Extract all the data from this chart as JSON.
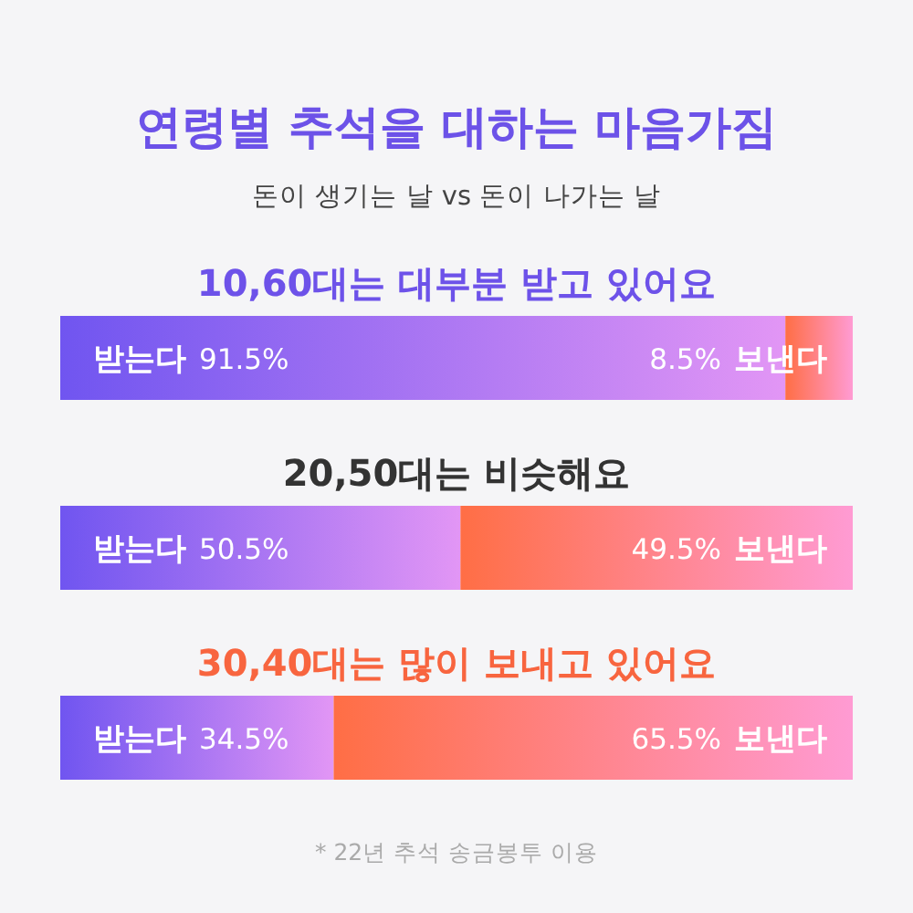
{
  "chart_data": {
    "type": "bar",
    "orientation": "horizontal",
    "stacked": true,
    "title": "연령별 추석을 대하는 마음가짐",
    "subtitle": "돈이 생기는 날 vs 돈이 나가는 날",
    "categories": [
      "10,60대는 대부분 받고 있어요",
      "20,50대는 비슷해요",
      "30,40대는 많이 보내고 있어요"
    ],
    "series": [
      {
        "name": "받는다",
        "color": "#7055f0",
        "values": [
          91.5,
          50.5,
          34.5
        ],
        "value_labels": [
          "91.5%",
          "50.5%",
          "34.5%"
        ]
      },
      {
        "name": "보낸다",
        "color": "#ff6e45",
        "values": [
          8.5,
          49.5,
          65.5
        ],
        "value_labels": [
          "8.5%",
          "49.5%",
          "65.5%"
        ]
      }
    ],
    "xlim": [
      0,
      100
    ],
    "tick_labels": "y",
    "annotations": [
      "* 22년 추석 송금봉투 이용"
    ]
  }
}
